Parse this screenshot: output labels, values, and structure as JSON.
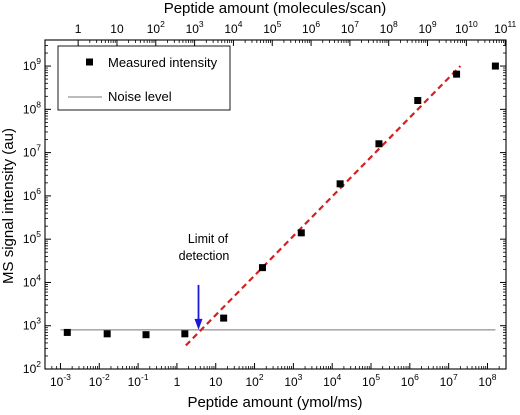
{
  "chart_data": {
    "type": "scatter",
    "xlabel": "Peptide amount (ymol/ms)",
    "x2label": "Peptide amount (molecules/scan)",
    "ylabel": "MS signal intensity (au)",
    "x_scale": "log",
    "y_scale": "log",
    "xlim": [
      0.0004,
      300000000
    ],
    "ylim": [
      100,
      4000000000
    ],
    "x_ticks": [
      {
        "value": 0.001,
        "base": "10",
        "exp": "-3"
      },
      {
        "value": 0.01,
        "base": "10",
        "exp": "-2"
      },
      {
        "value": 0.1,
        "base": "10",
        "exp": "-1"
      },
      {
        "value": 1,
        "base": "1",
        "exp": ""
      },
      {
        "value": 10,
        "base": "10",
        "exp": ""
      },
      {
        "value": 100,
        "base": "10",
        "exp": "2"
      },
      {
        "value": 1000,
        "base": "10",
        "exp": "3"
      },
      {
        "value": 10000,
        "base": "10",
        "exp": "4"
      },
      {
        "value": 100000,
        "base": "10",
        "exp": "5"
      },
      {
        "value": 1000000,
        "base": "10",
        "exp": "6"
      },
      {
        "value": 10000000,
        "base": "10",
        "exp": "7"
      },
      {
        "value": 100000000,
        "base": "10",
        "exp": "8"
      }
    ],
    "x2_ticks": [
      {
        "value": 1,
        "base": "1",
        "exp": ""
      },
      {
        "value": 10,
        "base": "10",
        "exp": ""
      },
      {
        "value": 100,
        "base": "10",
        "exp": "2"
      },
      {
        "value": 1000,
        "base": "10",
        "exp": "3"
      },
      {
        "value": 10000,
        "base": "10",
        "exp": "4"
      },
      {
        "value": 100000,
        "base": "10",
        "exp": "5"
      },
      {
        "value": 1000000,
        "base": "10",
        "exp": "6"
      },
      {
        "value": 10000000,
        "base": "10",
        "exp": "7"
      },
      {
        "value": 100000000,
        "base": "10",
        "exp": "8"
      },
      {
        "value": 1000000000,
        "base": "10",
        "exp": "9"
      },
      {
        "value": 10000000000,
        "base": "10",
        "exp": "10"
      },
      {
        "value": 100000000000,
        "base": "10",
        "exp": "11"
      }
    ],
    "x2_per_x": 350,
    "y_ticks": [
      {
        "value": 100,
        "base": "10",
        "exp": "2"
      },
      {
        "value": 1000,
        "base": "10",
        "exp": "3"
      },
      {
        "value": 10000,
        "base": "10",
        "exp": "4"
      },
      {
        "value": 100000,
        "base": "10",
        "exp": "5"
      },
      {
        "value": 1000000,
        "base": "10",
        "exp": "6"
      },
      {
        "value": 10000000,
        "base": "10",
        "exp": "7"
      },
      {
        "value": 100000000,
        "base": "10",
        "exp": "8"
      },
      {
        "value": 1000000000,
        "base": "10",
        "exp": "9"
      }
    ],
    "series": [
      {
        "name": "Measured intensity",
        "marker": "square",
        "color": "#000000",
        "points": [
          {
            "x": 0.0015,
            "y": 700
          },
          {
            "x": 0.016,
            "y": 650
          },
          {
            "x": 0.16,
            "y": 620
          },
          {
            "x": 1.6,
            "y": 650
          },
          {
            "x": 16,
            "y": 1500
          },
          {
            "x": 160,
            "y": 22000
          },
          {
            "x": 1600,
            "y": 140000
          },
          {
            "x": 16000,
            "y": 1900000
          },
          {
            "x": 160000,
            "y": 16000000
          },
          {
            "x": 1600000,
            "y": 160000000
          },
          {
            "x": 16000000,
            "y": 650000000
          },
          {
            "x": 160000000,
            "y": 1000000000
          }
        ]
      },
      {
        "name": "Noise level",
        "line": "solid",
        "color": "#777777",
        "x": [
          0.001,
          160000000
        ],
        "y": [
          800,
          800
        ]
      },
      {
        "line": "dashed",
        "color": "#d42020",
        "x": [
          1.7,
          20000000
        ],
        "y": [
          350,
          1000000000
        ]
      }
    ],
    "annotation": {
      "lines": [
        "Limit of",
        "detection"
      ],
      "arrow_color": "#1a1ad6",
      "arrow_x": 3.6,
      "arrow_y_head": 800
    },
    "legend_position": "top-left",
    "grid": false
  }
}
